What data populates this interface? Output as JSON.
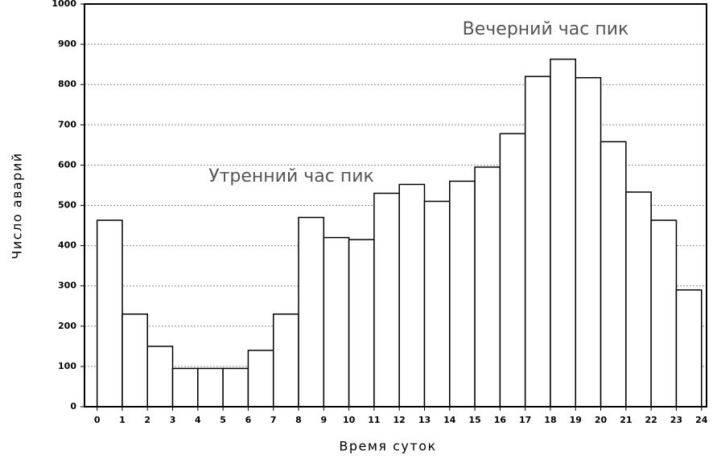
{
  "chart_data": {
    "type": "histogram",
    "xlabel": "Время суток",
    "ylabel": "Число аварий",
    "annotations": [
      "Вечерний час пик",
      "Утренний час пик"
    ],
    "bins": [
      0,
      1,
      2,
      3,
      4,
      5,
      6,
      7,
      8,
      9,
      10,
      11,
      12,
      13,
      14,
      15,
      16,
      17,
      18,
      19,
      20,
      21,
      22,
      23,
      24
    ],
    "values": [
      463,
      230,
      150,
      95,
      95,
      95,
      140,
      230,
      470,
      420,
      415,
      530,
      552,
      510,
      560,
      595,
      678,
      820,
      863,
      817,
      658,
      533,
      463,
      290
    ],
    "color": "#ffffff",
    "xlim": [
      -0.5,
      24.2
    ],
    "xticks": [
      0,
      1,
      2,
      3,
      4,
      5,
      6,
      7,
      8,
      9,
      10,
      11,
      12,
      13,
      14,
      15,
      16,
      17,
      18,
      19,
      20,
      21,
      22,
      23,
      24
    ],
    "ylim": [
      0,
      1000
    ],
    "yticks": [
      0,
      100,
      200,
      300,
      400,
      500,
      600,
      700,
      800,
      900,
      1000
    ],
    "grid": true
  }
}
